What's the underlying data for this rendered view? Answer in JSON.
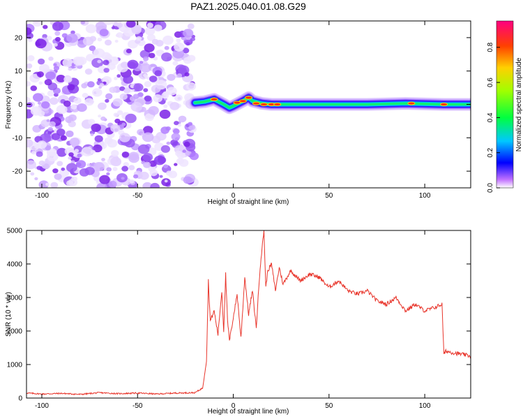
{
  "title": "PAZ1.2025.040.01.08.G29",
  "chart_data": [
    {
      "type": "heatmap",
      "xlabel": "Height of straight line (km)",
      "ylabel": "Frequency (Hz)",
      "xlim": [
        -108,
        124
      ],
      "ylim": [
        -25,
        25
      ],
      "xticks": [
        -100,
        -50,
        0,
        50,
        100
      ],
      "yticks": [
        -20,
        -10,
        0,
        10,
        20
      ],
      "noise_region_x": [
        -108,
        -20
      ],
      "track": [
        {
          "x": -20,
          "y": 0.5
        },
        {
          "x": -15,
          "y": 0.8
        },
        {
          "x": -10,
          "y": 1.5
        },
        {
          "x": -5,
          "y": 0
        },
        {
          "x": -2,
          "y": -1
        },
        {
          "x": 0,
          "y": -0.5
        },
        {
          "x": 5,
          "y": 1
        },
        {
          "x": 8,
          "y": 2
        },
        {
          "x": 10,
          "y": 1
        },
        {
          "x": 15,
          "y": 0.3
        },
        {
          "x": 20,
          "y": 0
        },
        {
          "x": 30,
          "y": 0
        },
        {
          "x": 50,
          "y": 0
        },
        {
          "x": 70,
          "y": 0
        },
        {
          "x": 90,
          "y": 0.3
        },
        {
          "x": 110,
          "y": 0
        },
        {
          "x": 124,
          "y": 0
        }
      ],
      "colorbar": {
        "label": "Normalized spectral amplitude",
        "range": [
          0,
          0.95
        ],
        "ticks": [
          0.0,
          0.2,
          0.4,
          0.6,
          0.8
        ]
      }
    },
    {
      "type": "line",
      "xlabel": "Height of straight line (km)",
      "ylabel": "SNR (10 * v/v)",
      "xlim": [
        -108,
        124
      ],
      "ylim": [
        0,
        5000
      ],
      "xticks": [
        -100,
        -50,
        0,
        50,
        100
      ],
      "yticks": [
        0,
        1000,
        2000,
        3000,
        4000,
        5000
      ],
      "color": "#e8352b",
      "x": [
        -108,
        -100,
        -90,
        -80,
        -70,
        -60,
        -50,
        -40,
        -30,
        -20,
        -16,
        -14,
        -13,
        -12,
        -10,
        -8,
        -6,
        -5,
        -4,
        -3,
        -2,
        0,
        2,
        4,
        6,
        8,
        10,
        12,
        14,
        16,
        17,
        18,
        20,
        22,
        24,
        26,
        28,
        30,
        35,
        40,
        45,
        50,
        55,
        60,
        65,
        70,
        75,
        80,
        85,
        90,
        95,
        100,
        105,
        109,
        110,
        111,
        115,
        120,
        124
      ],
      "y": [
        150,
        120,
        140,
        110,
        160,
        130,
        150,
        120,
        150,
        160,
        300,
        1100,
        3500,
        2300,
        2600,
        1900,
        3200,
        2000,
        3700,
        2300,
        1700,
        2400,
        3100,
        1800,
        3600,
        2500,
        3200,
        2100,
        3900,
        5000,
        3300,
        3800,
        4000,
        3200,
        3900,
        3400,
        3600,
        3800,
        3500,
        3700,
        3600,
        3300,
        3500,
        3200,
        3100,
        3200,
        2900,
        2800,
        3000,
        2600,
        2800,
        2600,
        2700,
        2800,
        1300,
        1400,
        1350,
        1300,
        1250
      ]
    }
  ]
}
